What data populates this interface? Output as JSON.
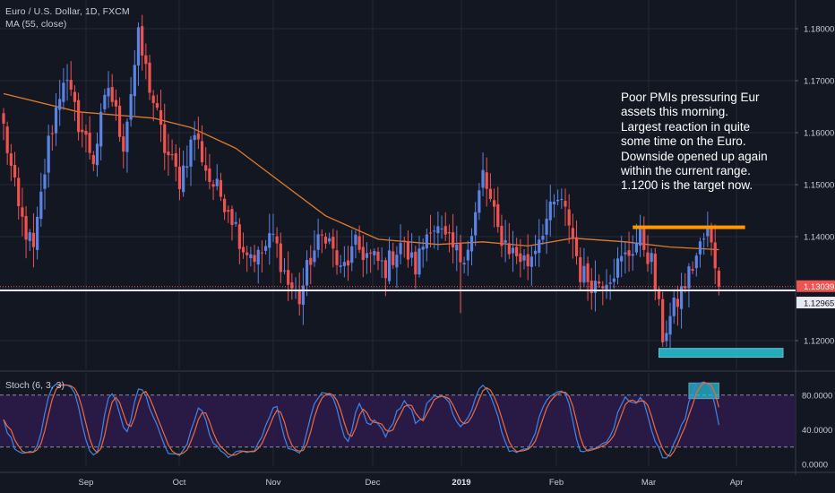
{
  "chart_header": {
    "title": "Euro / U.S. Dollar, 1D, FXCM",
    "indicator": "MA (55, close)"
  },
  "annotation": {
    "lines": [
      "Poor PMIs pressuring Eur",
      "assets this morning.",
      "Largest reaction in quite",
      "some time on the Euro.",
      "Downside opened up again",
      "within the current range.",
      "1.1200 is the target now."
    ]
  },
  "stoch_panel": {
    "label": "Stoch (6, 3, 3)",
    "ticks": [
      "80.0000",
      "40.0000",
      "0.0000"
    ],
    "levels": [
      80,
      20
    ]
  },
  "colors": {
    "background": "#131722",
    "up": "#5b83e3",
    "down": "#ef5350",
    "ma": "#e07b2c",
    "stoch_k": "#3f86e8",
    "stoch_d": "#ef6a3a",
    "stoch_band": "#2e1a4b",
    "resistance": "#ff9800",
    "support": "#26c6da"
  },
  "chart_data": {
    "type": "candlestick",
    "symbol": "EURUSD",
    "timeframe": "1D",
    "x_ticks": [
      "Sep",
      "Oct",
      "Nov",
      "Dec",
      "2019",
      "Feb",
      "Mar",
      "Apr"
    ],
    "y_ticks": [
      "1.18000",
      "1.17000",
      "1.16000",
      "1.15000",
      "1.14000",
      "1.12000"
    ],
    "ylim": [
      1.1145,
      1.1845
    ],
    "price_tags": {
      "last": "1.13039",
      "level": "1.12965"
    },
    "anchors": [
      {
        "bar": 0,
        "price": 1.161
      },
      {
        "bar": 4,
        "price": 1.145
      },
      {
        "bar": 8,
        "price": 1.137
      },
      {
        "bar": 12,
        "price": 1.158
      },
      {
        "bar": 16,
        "price": 1.171
      },
      {
        "bar": 20,
        "price": 1.162
      },
      {
        "bar": 24,
        "price": 1.155
      },
      {
        "bar": 28,
        "price": 1.169
      },
      {
        "bar": 32,
        "price": 1.158
      },
      {
        "bar": 36,
        "price": 1.178
      },
      {
        "bar": 39,
        "price": 1.169
      },
      {
        "bar": 43,
        "price": 1.157
      },
      {
        "bar": 47,
        "price": 1.151
      },
      {
        "bar": 51,
        "price": 1.16
      },
      {
        "bar": 55,
        "price": 1.151
      },
      {
        "bar": 60,
        "price": 1.146
      },
      {
        "bar": 64,
        "price": 1.138
      },
      {
        "bar": 68,
        "price": 1.136
      },
      {
        "bar": 72,
        "price": 1.14
      },
      {
        "bar": 76,
        "price": 1.131
      },
      {
        "bar": 79,
        "price": 1.128
      },
      {
        "bar": 82,
        "price": 1.136
      },
      {
        "bar": 86,
        "price": 1.141
      },
      {
        "bar": 90,
        "price": 1.133
      },
      {
        "bar": 94,
        "price": 1.138
      },
      {
        "bar": 98,
        "price": 1.136
      },
      {
        "bar": 102,
        "price": 1.134
      },
      {
        "bar": 106,
        "price": 1.139
      },
      {
        "bar": 110,
        "price": 1.134
      },
      {
        "bar": 114,
        "price": 1.143
      },
      {
        "bar": 118,
        "price": 1.139
      },
      {
        "bar": 122,
        "price": 1.136
      },
      {
        "bar": 125,
        "price": 1.14
      },
      {
        "bar": 128,
        "price": 1.152
      },
      {
        "bar": 132,
        "price": 1.141
      },
      {
        "bar": 136,
        "price": 1.137
      },
      {
        "bar": 140,
        "price": 1.135
      },
      {
        "bar": 144,
        "price": 1.142
      },
      {
        "bar": 148,
        "price": 1.147
      },
      {
        "bar": 151,
        "price": 1.143
      },
      {
        "bar": 154,
        "price": 1.133
      },
      {
        "bar": 158,
        "price": 1.131
      },
      {
        "bar": 162,
        "price": 1.133
      },
      {
        "bar": 166,
        "price": 1.136
      },
      {
        "bar": 170,
        "price": 1.14
      },
      {
        "bar": 173,
        "price": 1.135
      },
      {
        "bar": 176,
        "price": 1.121
      },
      {
        "bar": 179,
        "price": 1.126
      },
      {
        "bar": 182,
        "price": 1.131
      },
      {
        "bar": 186,
        "price": 1.138
      },
      {
        "bar": 188,
        "price": 1.141
      },
      {
        "bar": 190,
        "price": 1.135
      },
      {
        "bar": 191,
        "price": 1.1304
      }
    ],
    "ma_anchors": [
      {
        "bar": 0,
        "price": 1.1675
      },
      {
        "bar": 20,
        "price": 1.164
      },
      {
        "bar": 40,
        "price": 1.1628
      },
      {
        "bar": 50,
        "price": 1.161
      },
      {
        "bar": 62,
        "price": 1.157
      },
      {
        "bar": 74,
        "price": 1.1505
      },
      {
        "bar": 86,
        "price": 1.144
      },
      {
        "bar": 100,
        "price": 1.1395
      },
      {
        "bar": 116,
        "price": 1.1385
      },
      {
        "bar": 128,
        "price": 1.139
      },
      {
        "bar": 140,
        "price": 1.1382
      },
      {
        "bar": 152,
        "price": 1.1397
      },
      {
        "bar": 166,
        "price": 1.139
      },
      {
        "bar": 178,
        "price": 1.138
      },
      {
        "bar": 191,
        "price": 1.1375
      }
    ],
    "resistance_zone": {
      "from_bar": 168,
      "to_bar": 198,
      "price": 1.1418
    },
    "support_zone": {
      "from_bar": 175,
      "to_bar": 211,
      "price_top": 1.1185,
      "price_bottom": 1.1168
    },
    "stoch_highlight": {
      "from_bar": 183,
      "to_bar": 191,
      "top": 94,
      "bottom": 76
    }
  }
}
